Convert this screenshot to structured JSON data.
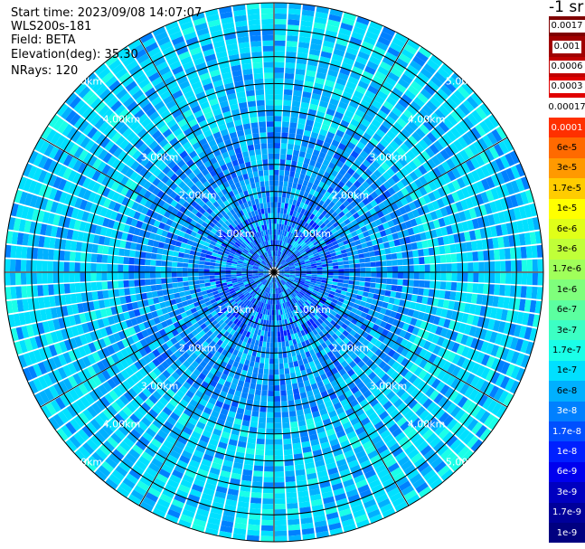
{
  "header": {
    "start_time": "Start time: 2023/09/08 14:07:07",
    "instrument": "WLS200s-181",
    "field": "Field: BETA",
    "elevation": "Elevation(deg): 35.30",
    "nrays": "NRays: 120"
  },
  "colorbar": {
    "title": "-1 sr",
    "upper": [
      {
        "label": "0.0017",
        "color": "#7f0000"
      },
      {
        "label": "0.001",
        "color": "#a00000"
      },
      {
        "label": "0.0006",
        "color": "#c00000"
      },
      {
        "label": "0.0003",
        "color": "#e00000"
      }
    ],
    "divider_label": "0.00017",
    "lower": [
      {
        "label": "0.0001",
        "color": "#ff3000"
      },
      {
        "label": "6e-5",
        "color": "#ff6a00"
      },
      {
        "label": "3e-5",
        "color": "#ff9900"
      },
      {
        "label": "1.7e-5",
        "color": "#ffcc00"
      },
      {
        "label": "1e-5",
        "color": "#ffff00"
      },
      {
        "label": "6e-6",
        "color": "#e0ff18"
      },
      {
        "label": "3e-6",
        "color": "#c0ff38"
      },
      {
        "label": "1.7e-6",
        "color": "#a0ff5a"
      },
      {
        "label": "1e-6",
        "color": "#7fff7c"
      },
      {
        "label": "6e-7",
        "color": "#5cffa0"
      },
      {
        "label": "3e-7",
        "color": "#3cffc4"
      },
      {
        "label": "1.7e-7",
        "color": "#1affe8"
      },
      {
        "label": "1e-7",
        "color": "#00e0ff"
      },
      {
        "label": "6e-8",
        "color": "#00b0ff"
      },
      {
        "label": "3e-8",
        "color": "#0080ff"
      },
      {
        "label": "1.7e-8",
        "color": "#0050ff"
      },
      {
        "label": "1e-8",
        "color": "#0020ff"
      },
      {
        "label": "6e-9",
        "color": "#0000ee"
      },
      {
        "label": "3e-9",
        "color": "#0000c0"
      },
      {
        "label": "1.7e-9",
        "color": "#00009a"
      },
      {
        "label": "1e-9",
        "color": "#000080"
      }
    ]
  },
  "chart_data": {
    "type": "heatmap",
    "projection": "polar PPI",
    "field": "BETA",
    "elevation_deg": 35.3,
    "nrays": 120,
    "range_rings_km": [
      {
        "range": 1.0,
        "label": "1.00km"
      },
      {
        "range": 2.0,
        "label": "2.00km"
      },
      {
        "range": 3.0,
        "label": "3.00km"
      },
      {
        "range": 4.0,
        "label": "4.00km"
      },
      {
        "range": 5.0,
        "label": "5.00km"
      }
    ],
    "max_range_km": 5.0,
    "dominant_value_range": [
      "1e-8",
      "1e-7"
    ]
  }
}
